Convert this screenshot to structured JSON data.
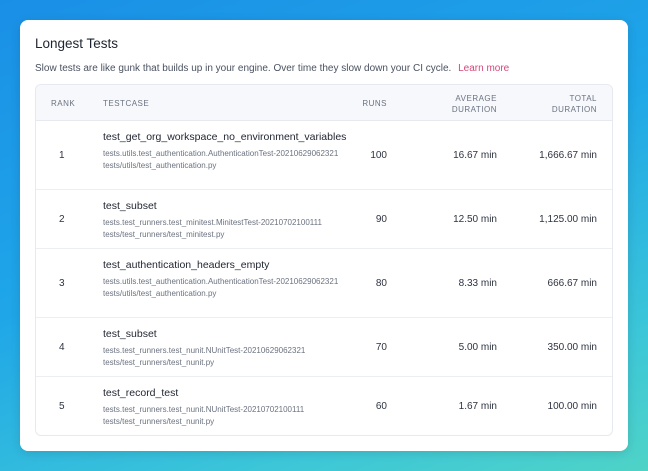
{
  "card": {
    "title": "Longest Tests",
    "subtitle": "Slow tests are like gunk that builds up in your engine. Over time they slow down your CI cycle.",
    "learn_more": "Learn more"
  },
  "table": {
    "headers": {
      "rank": "RANK",
      "testcase": "TESTCASE",
      "runs": "RUNS",
      "avg_line1": "AVERAGE",
      "avg_line2": "DURATION",
      "total_line1": "TOTAL",
      "total_line2": "DURATION"
    },
    "rows": [
      {
        "rank": "1",
        "name": "test_get_org_workspace_no_environment_variables",
        "class": "tests.utils.test_authentication.AuthenticationTest-20210629062321",
        "file": "tests/utils/test_authentication.py",
        "runs": "100",
        "avg": "16.67 min",
        "total": "1,666.67 min"
      },
      {
        "rank": "2",
        "name": "test_subset",
        "class": "tests.test_runners.test_minitest.MinitestTest-20210702100111",
        "file": "tests/test_runners/test_minitest.py",
        "runs": "90",
        "avg": "12.50 min",
        "total": "1,125.00 min"
      },
      {
        "rank": "3",
        "name": "test_authentication_headers_empty",
        "class": "tests.utils.test_authentication.AuthenticationTest-20210629062321",
        "file": "tests/utils/test_authentication.py",
        "runs": "80",
        "avg": "8.33 min",
        "total": "666.67 min"
      },
      {
        "rank": "4",
        "name": "test_subset",
        "class": "tests.test_runners.test_nunit.NUnitTest-20210629062321",
        "file": "tests/test_runners/test_nunit.py",
        "runs": "70",
        "avg": "5.00 min",
        "total": "350.00 min"
      },
      {
        "rank": "5",
        "name": "test_record_test",
        "class": "tests.test_runners.test_nunit.NUnitTest-20210702100111",
        "file": "tests/test_runners/test_nunit.py",
        "runs": "60",
        "avg": "1.67 min",
        "total": "100.00 min"
      }
    ]
  }
}
